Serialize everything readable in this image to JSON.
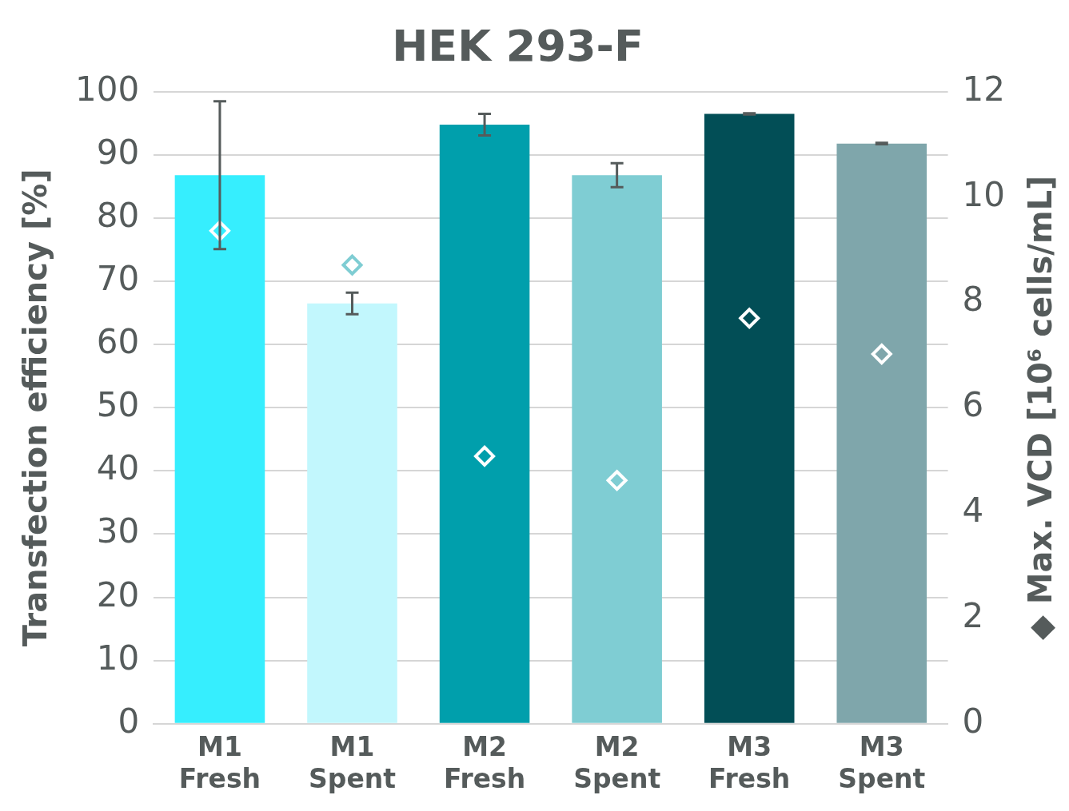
{
  "chart_data": {
    "type": "bar",
    "title": "HEK 293-F",
    "ylabel": "Transfection efficiency [%]",
    "y2label": "◆ Max. VCD [10⁶ cells/mL]",
    "categories": [
      "M1 Fresh",
      "M1 Spent",
      "M2 Fresh",
      "M2 Spent",
      "M3 Fresh",
      "M3 Spent"
    ],
    "series": [
      {
        "colors": [
          "#36eefe",
          "#c2f7fd",
          "#009fac",
          "#7fcdd3",
          "#024e56",
          "#7fa6ab"
        ],
        "values": [
          86.8,
          66.5,
          94.8,
          86.8,
          96.5,
          91.8
        ],
        "errors": [
          11.7,
          1.7,
          1.7,
          1.9,
          0.1,
          0.1
        ]
      },
      {
        "type": "scatter",
        "axis": "y2",
        "x": [
          "M1 Fresh",
          "M1 Spent",
          "M2 Fresh",
          "M2 Spent",
          "M3 Fresh",
          "M3 Spent"
        ],
        "colors": [
          "#ffffff",
          "#7fcdd3",
          "#ffffff",
          "#ffffff",
          "#ffffff",
          "#ffffff"
        ],
        "values": [
          9.36,
          8.71,
          5.08,
          4.62,
          7.7,
          7.02
        ],
        "marker": "diamond"
      }
    ],
    "ylim": [
      0,
      100
    ],
    "yticks": [
      0,
      10,
      20,
      30,
      40,
      50,
      60,
      70,
      80,
      90,
      100
    ],
    "y2lim": [
      0,
      12
    ],
    "y2ticks": [
      0,
      2,
      4,
      6,
      8,
      10,
      12
    ],
    "grid": "y",
    "legend": false
  }
}
